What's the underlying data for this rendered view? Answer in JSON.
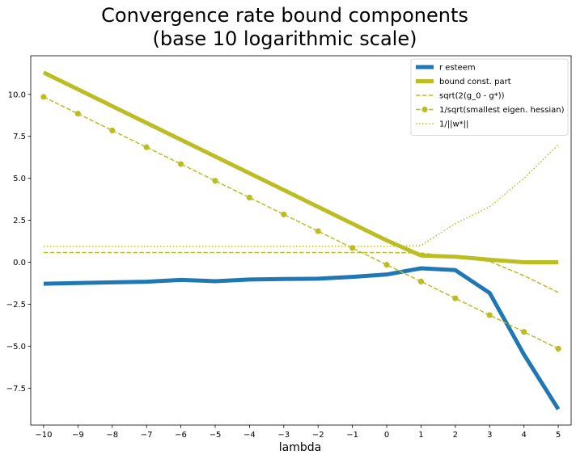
{
  "chart_data": {
    "type": "line",
    "title_lines": [
      "Convergence rate bound components",
      "(base 10 logarithmic scale)"
    ],
    "xlabel": "lambda",
    "ylabel": "",
    "xlim": [
      -10.375,
      5.375
    ],
    "ylim": [
      -9.7,
      12.3
    ],
    "grid": false,
    "legend_position": "top-right",
    "x_ticks": [
      -10,
      -9,
      -8,
      -7,
      -6,
      -5,
      -4,
      -3,
      -2,
      -1,
      0,
      1,
      2,
      3,
      4,
      5
    ],
    "x_tick_labels": [
      "−10",
      "−9",
      "−8",
      "−7",
      "−6",
      "−5",
      "−4",
      "−3",
      "−2",
      "−1",
      "0",
      "1",
      "2",
      "3",
      "4",
      "5"
    ],
    "y_ticks": [
      -7.5,
      -5.0,
      -2.5,
      0.0,
      2.5,
      5.0,
      7.5,
      10.0
    ],
    "y_tick_labels": [
      "−7.5",
      "−5.0",
      "−2.5",
      "0.0",
      "2.5",
      "5.0",
      "7.5",
      "10.0"
    ],
    "x": [
      -10,
      -9,
      -8,
      -7,
      -6,
      -5,
      -4,
      -3,
      -2,
      -1,
      0,
      1,
      2,
      3,
      4,
      5
    ],
    "series": [
      {
        "name": "r esteem",
        "color": "#1f77b4",
        "style": "solid-thick",
        "values": [
          -1.28,
          -1.24,
          -1.2,
          -1.16,
          -1.05,
          -1.13,
          -1.03,
          -1.0,
          -0.98,
          -0.87,
          -0.73,
          -0.36,
          -0.47,
          -1.83,
          -5.5,
          -8.75
        ]
      },
      {
        "name": "bound const. part",
        "color": "#bcbd22",
        "style": "solid-thick",
        "values": [
          11.3,
          10.3,
          9.3,
          8.3,
          7.3,
          6.3,
          5.3,
          4.3,
          3.3,
          2.3,
          1.3,
          0.4,
          0.33,
          0.15,
          0.0,
          0.0
        ]
      },
      {
        "name": "sqrt(2(g_0 - g*))",
        "color": "#bcbd22",
        "style": "dashed",
        "values": [
          0.58,
          0.58,
          0.58,
          0.58,
          0.58,
          0.58,
          0.58,
          0.58,
          0.58,
          0.58,
          0.58,
          0.55,
          0.3,
          0.05,
          -0.8,
          -1.8
        ]
      },
      {
        "name": "1/sqrt(smallest eigen. hessian)",
        "color": "#bcbd22",
        "style": "dashed-markers",
        "values": [
          9.85,
          8.85,
          7.85,
          6.85,
          5.85,
          4.85,
          3.85,
          2.85,
          1.85,
          0.85,
          -0.15,
          -1.15,
          -2.15,
          -3.15,
          -4.15,
          -5.15
        ]
      },
      {
        "name": "1/||w*||",
        "color": "#bcbd22",
        "style": "dotted",
        "values": [
          0.95,
          0.95,
          0.95,
          0.95,
          0.95,
          0.95,
          0.95,
          0.95,
          0.95,
          0.95,
          0.95,
          1.0,
          2.3,
          3.3,
          5.0,
          7.0
        ]
      }
    ]
  }
}
